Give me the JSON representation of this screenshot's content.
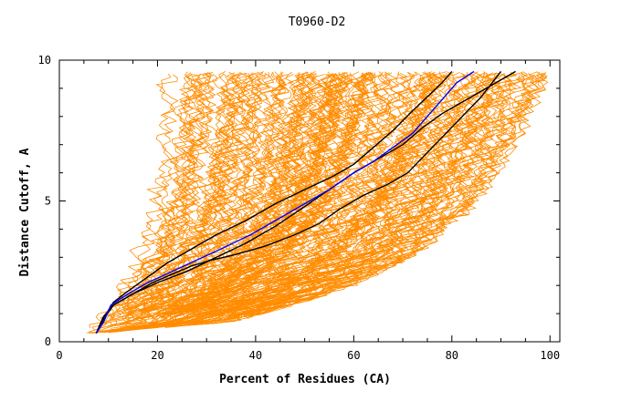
{
  "chart_data": {
    "type": "line",
    "title": "T0960-D2",
    "xlabel": "Percent of Residues (CA)",
    "ylabel": "Distance Cutoff, A",
    "xlim": [
      0,
      102
    ],
    "ylim": [
      0,
      10
    ],
    "x_ticks": [
      0,
      20,
      40,
      60,
      80,
      100
    ],
    "y_ticks": [
      0,
      5,
      10
    ],
    "x_minor_step": 5,
    "y_minor_step": 1,
    "grid": false,
    "colors": {
      "background_models": "#ff8c00",
      "highlight_black": "#000000",
      "highlight_blue": "#0000ff"
    },
    "background_curve_count": 180,
    "background_envelope": {
      "left_upper": [
        [
          7,
          0.3
        ],
        [
          9,
          1.0
        ],
        [
          13,
          2.2
        ],
        [
          17,
          4.0
        ],
        [
          19,
          6.0
        ],
        [
          20,
          8.0
        ],
        [
          20.5,
          9.6
        ]
      ],
      "right_lower": [
        [
          7,
          0.3
        ],
        [
          35,
          0.7
        ],
        [
          55,
          1.7
        ],
        [
          72,
          3.0
        ],
        [
          85,
          5.0
        ],
        [
          94,
          7.5
        ],
        [
          100,
          9.6
        ]
      ]
    },
    "series": [
      {
        "color": "#000000",
        "x": [
          7.5,
          9,
          11,
          14,
          18,
          22,
          27,
          32,
          38,
          44,
          50,
          56,
          60,
          64,
          68,
          72,
          75,
          78,
          80
        ],
        "y": [
          0.3,
          0.8,
          1.4,
          1.8,
          2.3,
          2.8,
          3.3,
          3.8,
          4.3,
          4.9,
          5.4,
          5.9,
          6.3,
          6.9,
          7.5,
          8.2,
          8.7,
          9.2,
          9.6
        ]
      },
      {
        "color": "#000000",
        "x": [
          7.5,
          9,
          11,
          15,
          19,
          23,
          27,
          31,
          36,
          42,
          48,
          53,
          57,
          62,
          67,
          71,
          76,
          81,
          86,
          90
        ],
        "y": [
          0.3,
          0.9,
          1.3,
          1.7,
          2.1,
          2.4,
          2.7,
          2.9,
          3.1,
          3.4,
          3.8,
          4.2,
          4.7,
          5.2,
          5.6,
          6.0,
          6.9,
          7.8,
          8.7,
          9.6
        ]
      },
      {
        "color": "#000000",
        "x": [
          7.5,
          9,
          11,
          15,
          20,
          26,
          32,
          38,
          44,
          50,
          55,
          60,
          65,
          70,
          74,
          78,
          82,
          86,
          90,
          93
        ],
        "y": [
          0.3,
          0.8,
          1.3,
          1.7,
          2.1,
          2.5,
          3.0,
          3.5,
          4.1,
          4.8,
          5.4,
          6.0,
          6.5,
          7.0,
          7.6,
          8.1,
          8.5,
          8.9,
          9.3,
          9.6
        ]
      },
      {
        "color": "#0000ff",
        "x": [
          7.5,
          9,
          10.5,
          14,
          18,
          23,
          28,
          33,
          39,
          45,
          50,
          55,
          60,
          64,
          68,
          72,
          75,
          78,
          81,
          84.5
        ],
        "y": [
          0.3,
          0.7,
          1.3,
          1.7,
          2.1,
          2.5,
          2.9,
          3.3,
          3.8,
          4.4,
          4.9,
          5.4,
          6.0,
          6.4,
          6.9,
          7.4,
          8.0,
          8.6,
          9.2,
          9.6
        ]
      }
    ]
  }
}
